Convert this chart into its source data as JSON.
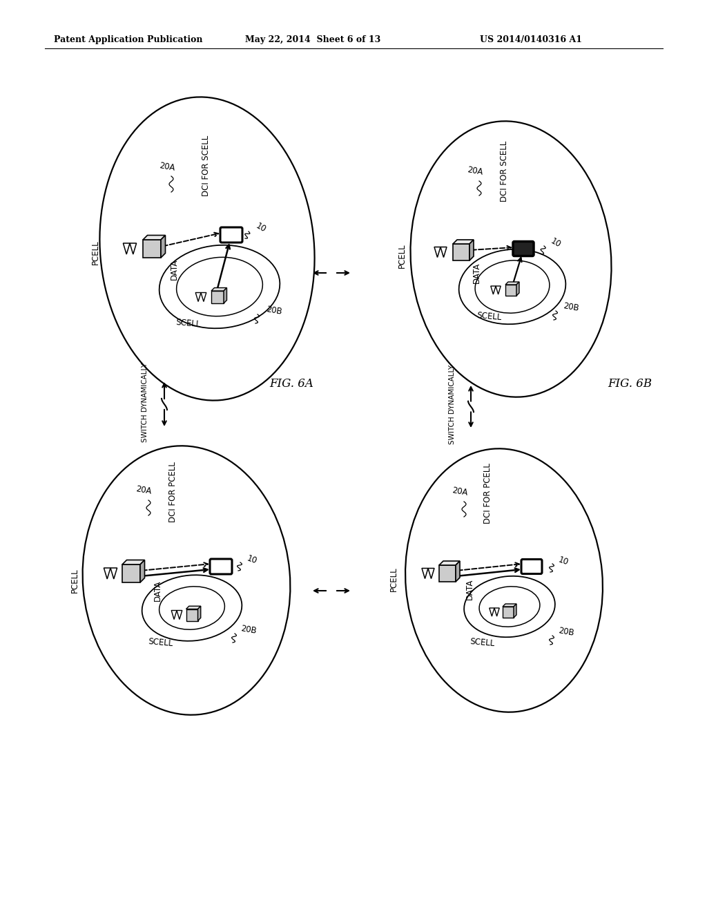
{
  "header_left": "Patent Application Publication",
  "header_mid": "May 22, 2014  Sheet 6 of 13",
  "header_right": "US 2014/0140316 A1",
  "fig_label_a": "FIG. 6A",
  "fig_label_b": "FIG. 6B",
  "bg_color": "#ffffff",
  "text_color": "#000000"
}
